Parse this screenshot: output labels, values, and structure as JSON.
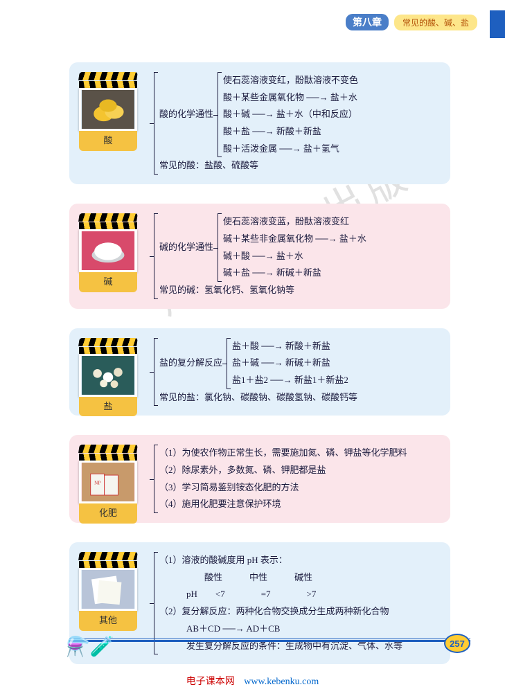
{
  "header": {
    "chapter": "第八章",
    "title": "常见的酸、碱、盐"
  },
  "cards": [
    {
      "bg": "blue",
      "label": "酸",
      "img_type": "lemons",
      "main_label": "酸的化学通性",
      "lines": [
        "使石蕊溶液变红，酚酞溶液不变色",
        "酸＋某些金属氧化物 ──→ 盐＋水",
        "酸＋碱 ──→ 盐＋水（中和反应）",
        "酸＋盐 ──→ 新酸＋新盐",
        "酸＋活泼金属 ──→ 盐＋氢气"
      ],
      "tail": "常见的酸：盐酸、硫酸等"
    },
    {
      "bg": "pink",
      "label": "碱",
      "img_type": "white",
      "main_label": "碱的化学通性",
      "lines": [
        "使石蕊溶液变蓝，酚酞溶液变红",
        "碱＋某些非金属氧化物 ──→ 盐＋水",
        "碱＋酸 ──→ 盐＋水",
        "碱＋盐 ──→ 新碱＋新盐"
      ],
      "tail": "常见的碱：氢氧化钙、氢氧化钠等"
    },
    {
      "bg": "blue",
      "label": "盐",
      "img_type": "pearls",
      "main_label": "盐的复分解反应",
      "lines": [
        "盐＋酸 ──→ 新酸＋新盐",
        "盐＋碱 ──→ 新碱＋新盐",
        "盐1＋盐2 ──→ 新盐1＋新盐2"
      ],
      "tail": "常见的盐：氯化钠、碳酸钠、碳酸氢钠、碳酸钙等"
    },
    {
      "bg": "pink",
      "label": "化肥",
      "img_type": "bags",
      "lines": [
        "（1）为使农作物正常生长，需要施加氮、磷、钾盐等化学肥料",
        "（2）除尿素外，多数氮、磷、钾肥都是盐",
        "（3）学习简易鉴别铵态化肥的方法",
        "（4）施用化肥要注意保护环境"
      ]
    },
    {
      "bg": "blue",
      "label": "其他",
      "img_type": "paper",
      "lines": [
        "（1）溶液的酸碱度用 pH 表示：",
        "　　　　　酸性　　　中性　　　碱性",
        "　　　pH　　<7　　　　=7　　　　>7",
        "（2）复分解反应：两种化合物交换成分生成两种新化合物",
        "　　　AB＋CD ──→ AD＋CB",
        "　　　发生复分解反应的条件：生成物中有沉淀、气体、水等"
      ]
    }
  ],
  "page_number": "257",
  "footer": {
    "text": "电子课本网",
    "url": "www.kebenku.com"
  },
  "watermark": "广东教育出版社"
}
